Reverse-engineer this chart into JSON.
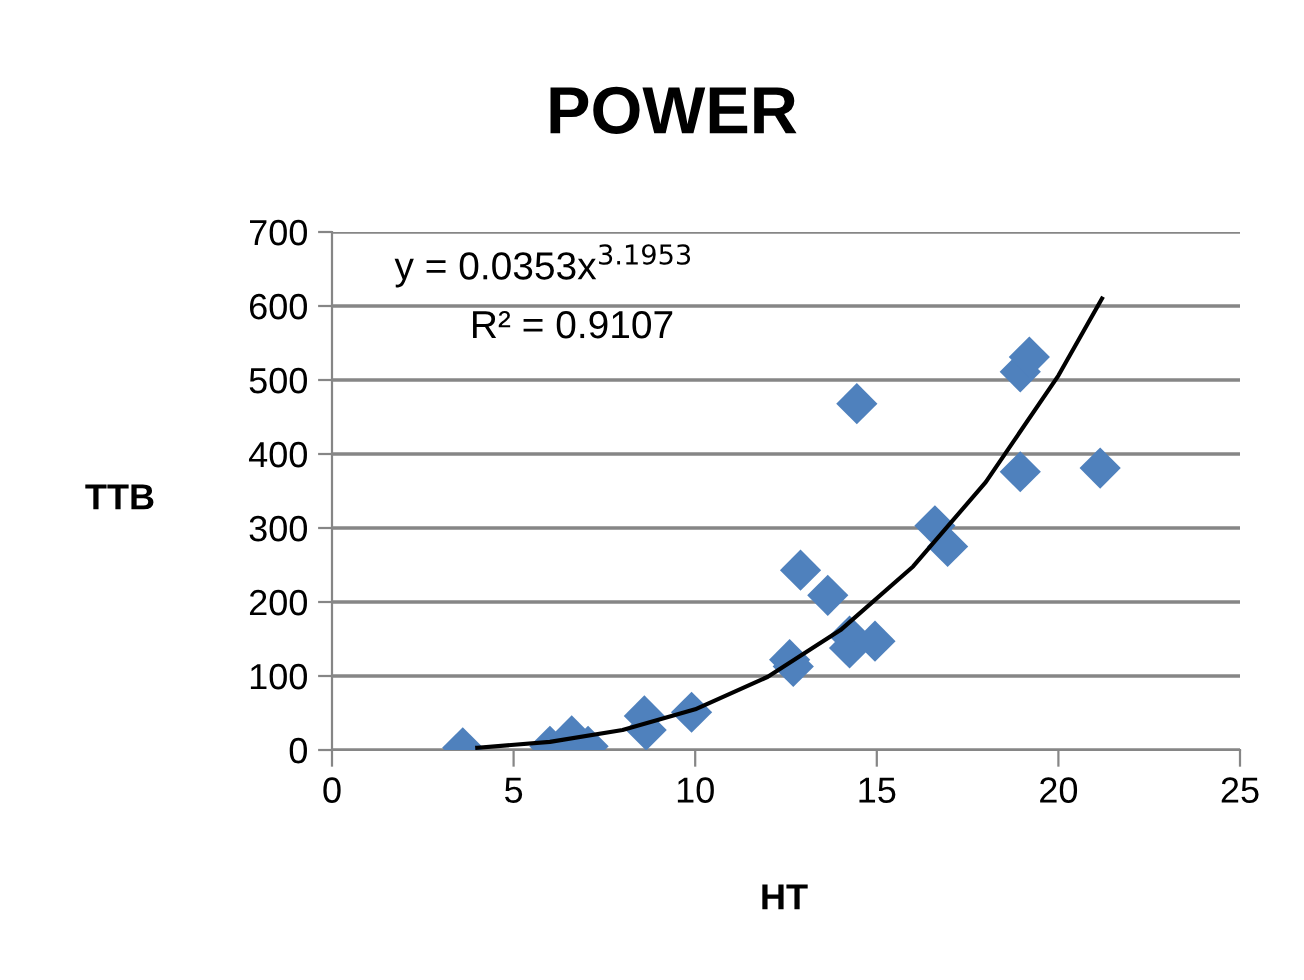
{
  "chart_data": {
    "type": "scatter",
    "title": "POWER",
    "xlabel": "HT",
    "ylabel": "TTB",
    "annotations": [
      "y = 0.0353x$^{3.1953}$",
      "R² = 0.9107"
    ],
    "series": [
      {
        "color": "#4f81bd",
        "marker": "diamond",
        "x": [
          3.6,
          6.0,
          6.6,
          7.05,
          8.6,
          8.65,
          9.9,
          12.6,
          12.7,
          12.9,
          13.65,
          14.25,
          14.25,
          14.95,
          14.45,
          16.6,
          16.95,
          18.95,
          19.2,
          18.95,
          21.15
        ],
        "values": [
          3,
          5,
          19,
          5,
          46,
          27,
          51,
          122,
          113,
          243,
          209,
          154,
          138,
          147,
          468,
          303,
          275,
          511,
          531,
          376,
          381
        ]
      },
      {
        "type": "line",
        "color": "#000000",
        "marker": "none",
        "x": [
          4,
          6,
          8,
          10,
          12,
          14,
          16,
          18,
          20,
          21.2
        ],
        "values": [
          3,
          11,
          27,
          55,
          99,
          162,
          248,
          362,
          506,
          610
        ]
      }
    ],
    "xlim": [
      0,
      25
    ],
    "xticks": [
      0,
      5,
      10,
      15,
      20,
      25
    ],
    "ylim": [
      0,
      700
    ],
    "yticks": [
      0,
      100,
      200,
      300,
      400,
      500,
      600,
      700
    ],
    "grid": "y",
    "legend": false
  }
}
